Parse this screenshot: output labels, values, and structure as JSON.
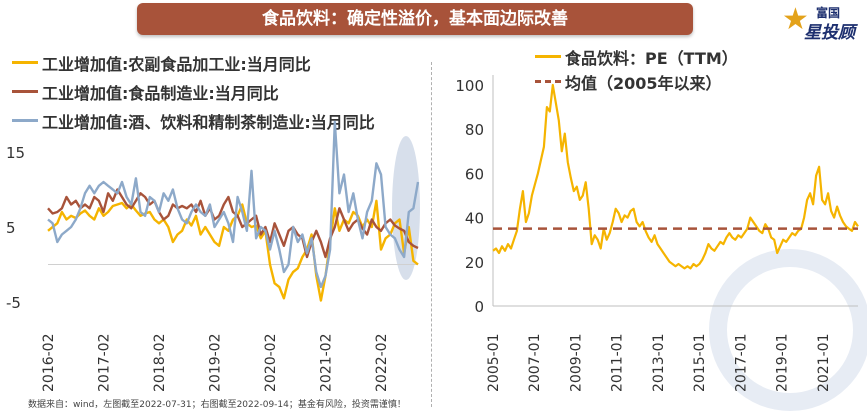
{
  "banner": {
    "title": "食品饮料：确定性溢价，基本面边际改善"
  },
  "logo": {
    "line1": "富国",
    "line2": "星投顾"
  },
  "footnote": "数据来自：wind，左图截至2022-07-31；右图截至2022-09-14；基金有风险，投资需谨慎！",
  "chart_data": [
    {
      "type": "line",
      "position": "left",
      "ylim": [
        -5,
        15
      ],
      "yticks": [
        "15",
        "5",
        "-5"
      ],
      "xticks": [
        "2016-02",
        "2017-02",
        "2018-02",
        "2019-02",
        "2020-02",
        "2021-02",
        "2022-02"
      ],
      "x_start": "2016-02",
      "x_end": "2022-07",
      "series": [
        {
          "name": "工业增加值:农副食品加工业:当月同比",
          "color": "#f5b400",
          "values": [
            4.5,
            5.0,
            5.5,
            7.0,
            6.0,
            6.5,
            6.2,
            6.8,
            7.2,
            6.5,
            6.0,
            7.5,
            6.5,
            7.0,
            7.8,
            8.0,
            8.2,
            7.5,
            8.0,
            7.2,
            6.5,
            6.8,
            7.0,
            6.0,
            5.5,
            6.0,
            5.0,
            3.0,
            4.0,
            4.5,
            6.0,
            5.2,
            6.5,
            4.0,
            5.0,
            4.0,
            3.0,
            2.5,
            5.0,
            4.5,
            6.0,
            6.5,
            8.0,
            5.5,
            5.0,
            5.2,
            3.5,
            4.5,
            0.0,
            -2.5,
            -3.0,
            -4.5,
            -2.0,
            -1.0,
            -0.5,
            1.0,
            2.0,
            4.0,
            -1.5,
            -4.8,
            -1.5,
            3.0,
            7.5,
            4.5,
            6.0,
            5.5,
            7.0,
            6.5,
            5.0,
            6.0,
            5.0,
            8.5,
            2.0,
            3.5,
            4.0,
            5.5,
            6.0,
            1.5,
            5.0,
            0.5,
            0.0
          ]
        },
        {
          "name": "工业增加值:食品制造业:当月同比",
          "color": "#a8533a",
          "values": [
            7.5,
            6.8,
            7.0,
            7.5,
            9.0,
            8.0,
            8.5,
            7.5,
            8.0,
            7.5,
            9.0,
            8.5,
            7.0,
            9.5,
            8.5,
            10.0,
            9.0,
            8.0,
            7.5,
            8.5,
            9.5,
            9.0,
            8.0,
            8.5,
            7.0,
            6.0,
            6.5,
            8.0,
            7.5,
            7.8,
            7.5,
            8.0,
            7.0,
            8.5,
            6.5,
            7.5,
            6.0,
            6.5,
            8.0,
            9.0,
            7.0,
            6.5,
            5.0,
            5.5,
            6.0,
            6.5,
            4.0,
            5.0,
            3.0,
            5.5,
            4.0,
            2.5,
            4.5,
            5.0,
            4.0,
            3.5,
            1.0,
            3.0,
            4.5,
            3.0,
            1.0,
            3.5,
            5.0,
            7.5,
            6.0,
            4.5,
            5.5,
            6.0,
            4.8,
            4.0,
            6.0,
            5.0,
            4.5,
            5.5,
            6.0,
            5.2,
            4.8,
            4.5,
            3.0,
            2.5,
            2.2
          ]
        },
        {
          "name": "工业增加值:酒、饮料和精制茶制造业:当月同比",
          "color": "#8da9c9",
          "values": [
            6.0,
            5.5,
            3.0,
            4.0,
            4.5,
            5.0,
            6.0,
            7.5,
            9.5,
            10.5,
            9.5,
            10.5,
            11.0,
            10.5,
            10.0,
            9.5,
            11.0,
            9.0,
            8.0,
            11.5,
            7.0,
            6.5,
            9.0,
            8.5,
            7.0,
            9.5,
            8.5,
            10.0,
            7.5,
            6.0,
            5.5,
            7.0,
            8.0,
            7.0,
            6.5,
            8.0,
            5.0,
            6.0,
            7.0,
            5.5,
            3.0,
            9.0,
            7.0,
            4.5,
            12.5,
            3.5,
            5.0,
            4.5,
            2.0,
            4.5,
            2.0,
            -1.0,
            0.0,
            5.0,
            3.0,
            4.0,
            1.5,
            3.5,
            -1.0,
            -3.0,
            -1.5,
            2.0,
            19.0,
            9.5,
            12.0,
            7.0,
            9.5,
            6.0,
            3.5,
            7.0,
            8.5,
            13.5,
            12.0,
            5.0,
            4.0,
            3.5,
            2.0,
            1.0,
            7.0,
            7.5,
            11.0
          ]
        }
      ]
    },
    {
      "type": "line",
      "position": "right",
      "ylim": [
        0,
        100
      ],
      "yticks": [
        "100",
        "80",
        "60",
        "40",
        "20",
        "0"
      ],
      "xticks": [
        "2005-01",
        "2007-01",
        "2009-01",
        "2011-01",
        "2013-01",
        "2015-01",
        "2017-01",
        "2019-01",
        "2021-01"
      ],
      "x_start": "2005-01",
      "x_end": "2022-09",
      "series": [
        {
          "name": "食品饮料：PE（TTM）",
          "color": "#f5b400",
          "values": [
            25,
            26,
            24,
            27,
            25,
            28,
            26,
            30,
            34,
            44,
            52,
            38,
            42,
            50,
            55,
            60,
            66,
            72,
            90,
            88,
            100,
            92,
            84,
            70,
            78,
            65,
            58,
            52,
            54,
            48,
            50,
            56,
            44,
            28,
            32,
            30,
            26,
            35,
            30,
            33,
            38,
            44,
            42,
            38,
            41,
            40,
            43,
            44,
            38,
            36,
            38,
            34,
            31,
            29,
            32,
            28,
            26,
            24,
            22,
            20,
            19,
            18,
            19,
            18,
            17,
            18,
            17,
            19,
            18,
            19,
            21,
            24,
            28,
            26,
            25,
            27,
            29,
            28,
            31,
            33,
            31,
            30,
            32,
            31,
            33,
            35,
            40,
            38,
            36,
            34,
            33,
            37,
            35,
            31,
            30,
            24,
            27,
            30,
            29,
            31,
            33,
            32,
            34,
            35,
            40,
            48,
            51,
            46,
            59,
            63,
            48,
            46,
            51,
            43,
            40,
            45,
            41,
            38,
            36,
            35,
            34,
            38,
            36
          ]
        },
        {
          "name": "均值（2005年以来）",
          "color": "#a8533a",
          "style": "dashed",
          "values": [
            35
          ]
        }
      ]
    }
  ]
}
